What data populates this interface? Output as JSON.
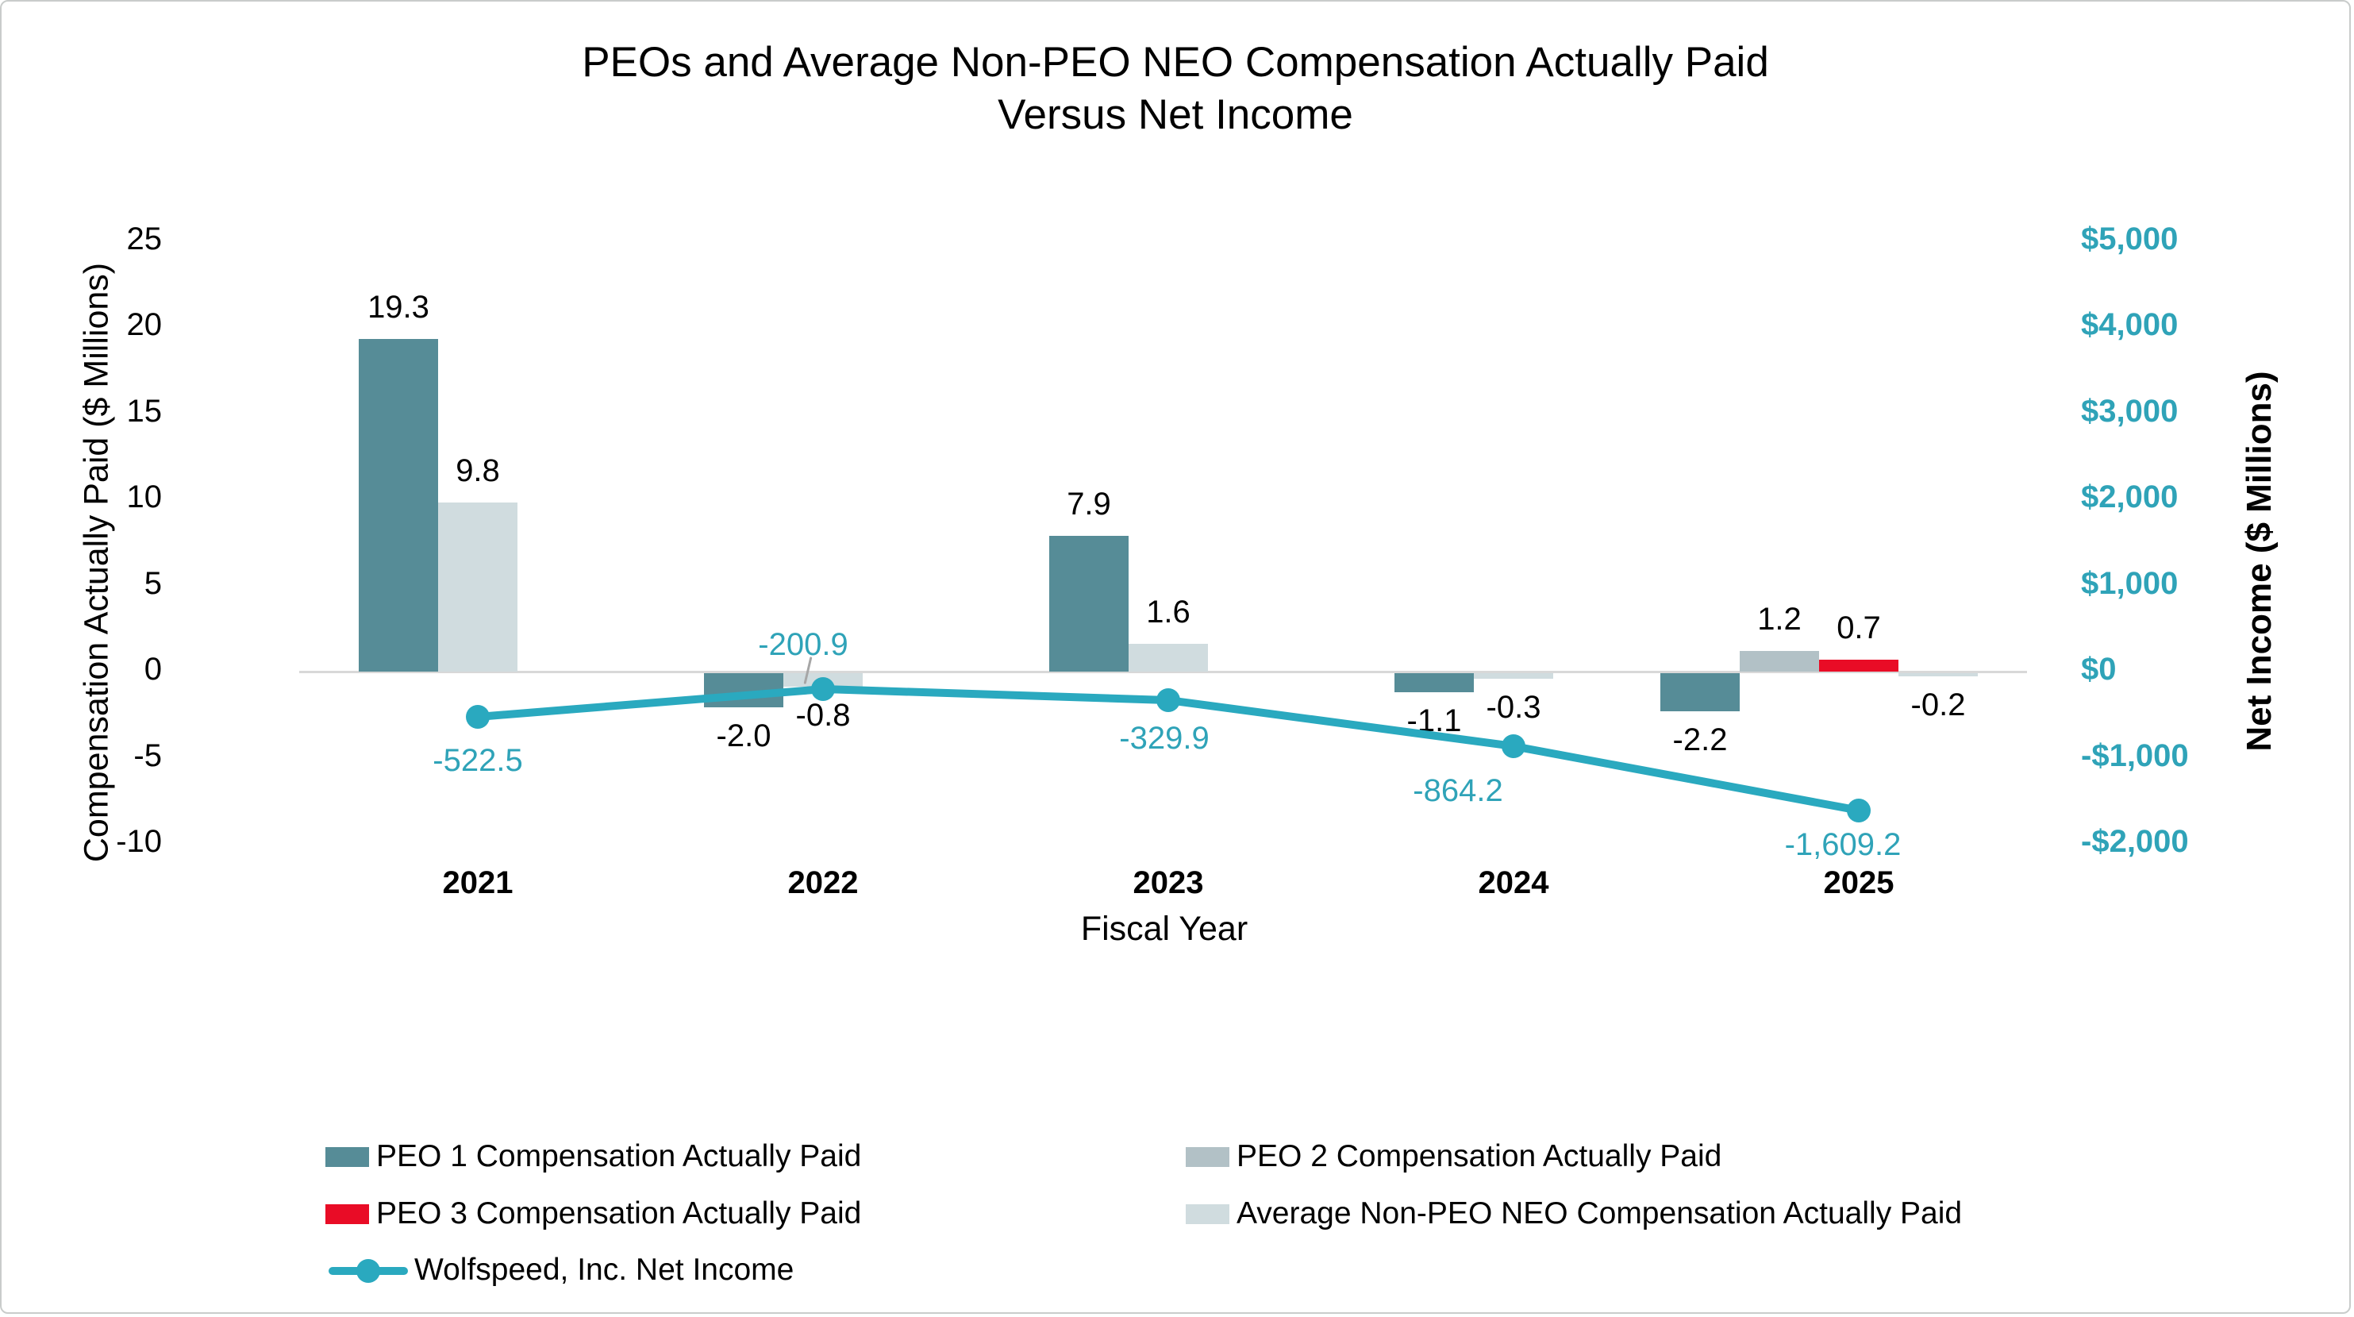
{
  "title": {
    "line1": "PEOs and Average Non-PEO NEO Compensation Actually Paid",
    "line2": "Versus Net Income"
  },
  "chart_data": {
    "type": "bar",
    "overlay": "line",
    "title": "PEOs and Average Non-PEO NEO Compensation Actually Paid Versus Net Income",
    "title_lines": [
      "PEOs and Average Non-PEO NEO Compensation Actually Paid",
      "Versus Net Income"
    ],
    "categories": [
      "2021",
      "2022",
      "2023",
      "2024",
      "2025"
    ],
    "xlabel": "Fiscal Year",
    "grid": "zero-line-only",
    "legend_position": "bottom",
    "left_axis": {
      "label": "Compensation Actually Paid ($ Millions)",
      "range": [
        -10,
        25
      ],
      "tick_values": [
        25,
        20,
        15,
        10,
        5,
        0,
        -5,
        -10
      ],
      "tick_labels": [
        "25",
        "20",
        "15",
        "10",
        "5",
        "0",
        "-5",
        "-10"
      ]
    },
    "right_axis": {
      "label": "Net Income ($ Millions)",
      "range": [
        -2000,
        5000
      ],
      "tick_values": [
        5000,
        4000,
        3000,
        2000,
        1000,
        0,
        -1000,
        -2000
      ],
      "tick_labels": [
        "$5,000",
        "$4,000",
        "$3,000",
        "$2,000",
        "$1,000",
        "$0",
        "-$1,000",
        "-$2,000"
      ]
    },
    "series": [
      {
        "name": "PEO 1 Compensation Actually Paid",
        "color": "#568c97",
        "axis": "left",
        "values": [
          19.3,
          -2.0,
          7.9,
          -1.1,
          -2.2
        ],
        "labels": [
          "19.3",
          "-2.0",
          "7.9",
          "-1.1",
          "-2.2"
        ]
      },
      {
        "name": "PEO 2 Compensation Actually Paid",
        "color": "#b2c1c6",
        "axis": "left",
        "values": [
          null,
          null,
          null,
          null,
          1.2
        ],
        "labels": [
          null,
          null,
          null,
          null,
          "1.2"
        ]
      },
      {
        "name": "PEO 3 Compensation Actually Paid",
        "color": "#e90c26",
        "axis": "left",
        "values": [
          null,
          null,
          null,
          null,
          0.7
        ],
        "labels": [
          null,
          null,
          null,
          null,
          "0.7"
        ]
      },
      {
        "name": "Average Non-PEO NEO Compensation Actually Paid",
        "color": "#d0dcdf",
        "axis": "left",
        "values": [
          9.8,
          -0.8,
          1.6,
          -0.3,
          -0.2
        ],
        "labels": [
          "9.8",
          "-0.8",
          "1.6",
          "-0.3",
          "-0.2"
        ]
      }
    ],
    "line_series": {
      "name": "Wolfspeed, Inc. Net Income",
      "color": "#2aa9bf",
      "text_color": "#2fa3b8",
      "axis": "right",
      "values": [
        -522.5,
        -200.9,
        -329.9,
        -864.2,
        -1609.2
      ],
      "labels": [
        "-522.5",
        "-200.9",
        "-329.9",
        "-864.2",
        "-1,609.2"
      ]
    }
  },
  "colors": {
    "teal_bar": "#568c97",
    "gray_bar": "#b2c1c6",
    "red_bar": "#e90c26",
    "light_bar": "#d0dcdf",
    "line_teal": "#2aa9bf",
    "teal_text": "#2fa3b8",
    "gridline": "#d8d8d8",
    "leader": "#a6a6a6"
  },
  "legend": {
    "columns": [
      [
        {
          "label": "PEO 1 Compensation Actually Paid",
          "swatch": "bar",
          "color": "#568c97"
        },
        {
          "label": "PEO 3 Compensation Actually Paid",
          "swatch": "bar",
          "color": "#e90c26"
        },
        {
          "label": "Wolfspeed, Inc. Net Income",
          "swatch": "line",
          "color": "#2aa9bf"
        }
      ],
      [
        {
          "label": "PEO 2 Compensation Actually Paid",
          "swatch": "bar",
          "color": "#b2c1c6"
        },
        {
          "label": "Average Non-PEO NEO Compensation Actually Paid",
          "swatch": "bar",
          "color": "#d0dcdf"
        }
      ]
    ]
  }
}
